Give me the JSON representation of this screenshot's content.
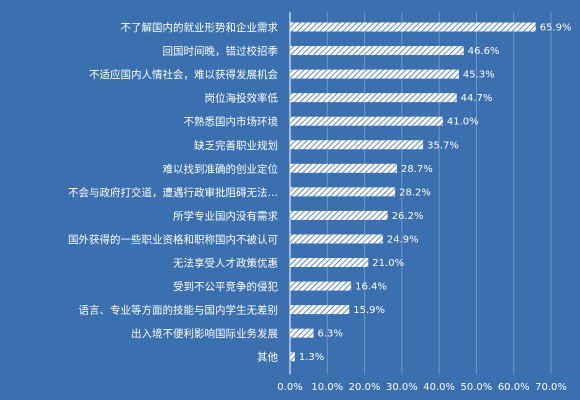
{
  "chart_data": {
    "type": "bar",
    "orientation": "horizontal",
    "categories": [
      "不了解国内的就业形势和企业需求",
      "回国时间晚，错过校招季",
      "不适应国内人情社会，难以获得发展机会",
      "岗位海投效率低",
      "不熟悉国内市场环境",
      "缺乏完善职业规划",
      "难以找到准确的创业定位",
      "不会与政府打交道，遭遇行政审批阻碍无法…",
      "所学专业国内没有需求",
      "国外获得的一些职业资格和职称国内不被认可",
      "无法享受人才政策优惠",
      "受到不公平竞争的侵犯",
      "语言、专业等方面的技能与国内学生无差别",
      "出入境不便利影响国际业务发展",
      "其他"
    ],
    "values": [
      65.9,
      46.6,
      45.3,
      44.7,
      41.0,
      35.7,
      28.7,
      28.2,
      26.2,
      24.9,
      21.0,
      16.4,
      15.9,
      6.3,
      1.3
    ],
    "value_labels": [
      "65.9%",
      "46.6%",
      "45.3%",
      "44.7%",
      "41.0%",
      "35.7%",
      "28.7%",
      "28.2%",
      "26.2%",
      "24.9%",
      "21.0%",
      "16.4%",
      "15.9%",
      "6.3%",
      "1.3%"
    ],
    "xlim": [
      0,
      70
    ],
    "x_ticks": [
      "0.0%",
      "10.0%",
      "20.0%",
      "30.0%",
      "40.0%",
      "50.0%",
      "60.0%",
      "70.0%"
    ],
    "grid": true,
    "colors": {
      "background": "#3a6fb0",
      "bar_fill": "#ffffff",
      "bar_hatch": "#3a6fb0",
      "text": "#ffffff",
      "grid": "#6d97c8"
    }
  }
}
